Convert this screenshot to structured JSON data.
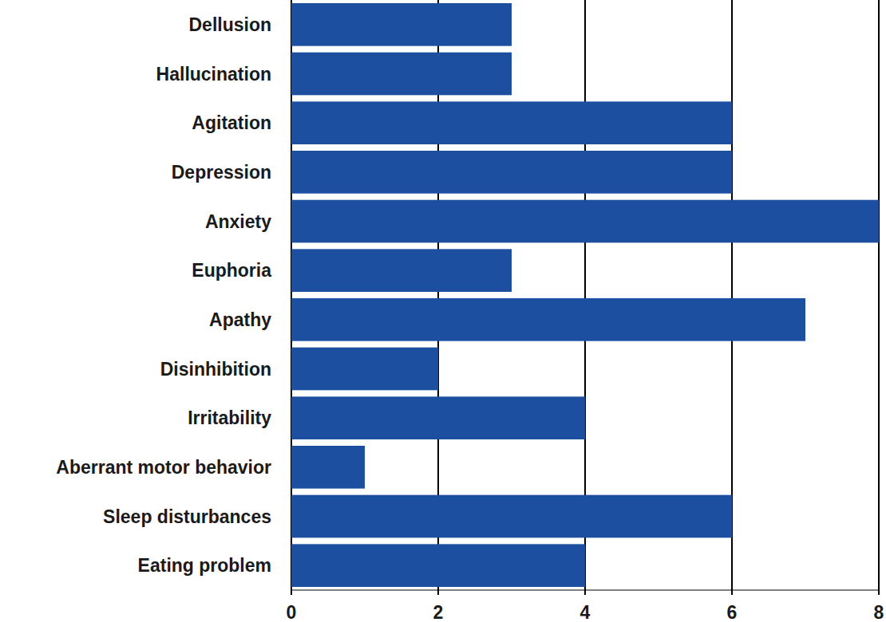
{
  "chart_data": {
    "type": "bar",
    "orientation": "horizontal",
    "categories": [
      "Dellusion",
      "Hallucination",
      "Agitation",
      "Depression",
      "Anxiety",
      "Euphoria",
      "Apathy",
      "Disinhibition",
      "Irritability",
      "Aberrant motor behavior",
      "Sleep disturbances",
      "Eating problem"
    ],
    "values": [
      3,
      3,
      6,
      6,
      8,
      3,
      7,
      2,
      4,
      1,
      6,
      4
    ],
    "color": "#1d4fa0",
    "xlim": [
      0,
      8
    ],
    "xticks": [
      0,
      2,
      4,
      6,
      8
    ],
    "grid": true
  }
}
